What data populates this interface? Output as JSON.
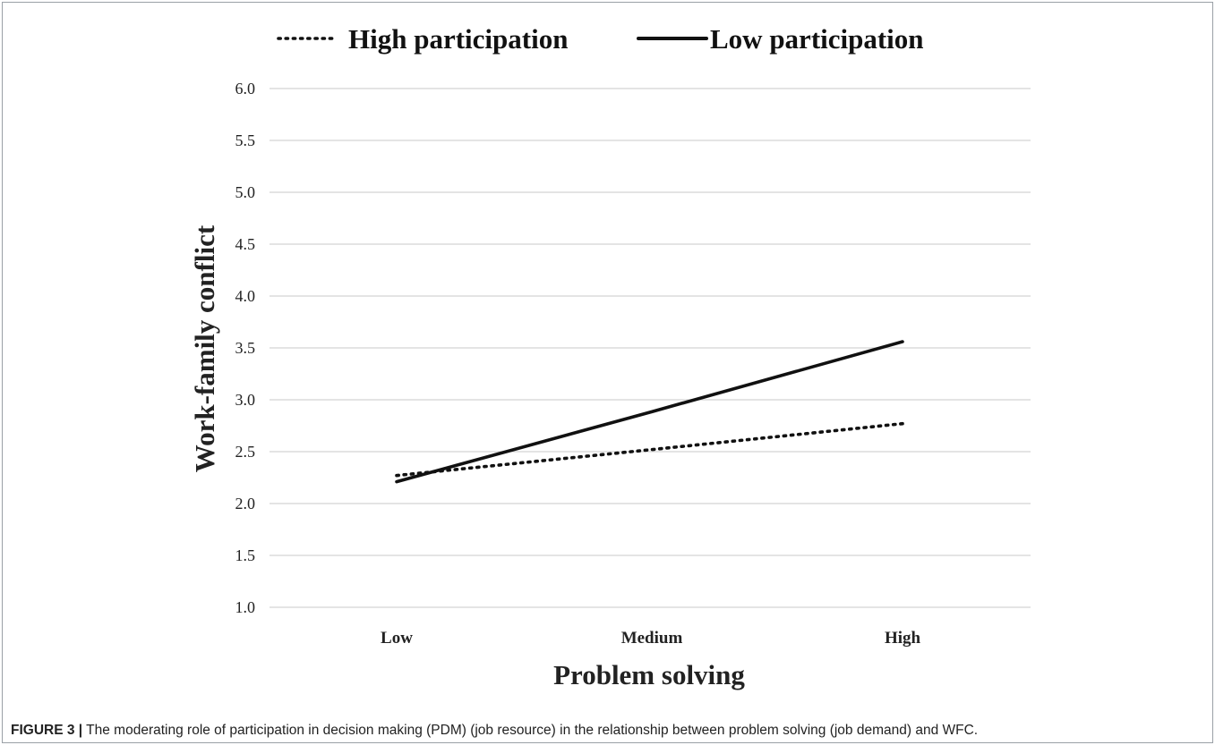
{
  "chart_data": {
    "type": "line",
    "categories": [
      "Low",
      "Medium",
      "High"
    ],
    "series": [
      {
        "name": "High participation",
        "values": [
          2.27,
          2.52,
          2.77
        ],
        "style": "dotted",
        "color": "#111111"
      },
      {
        "name": "Low participation",
        "values": [
          2.21,
          2.885,
          3.56
        ],
        "style": "solid",
        "color": "#111111"
      }
    ],
    "xlabel": "Problem solving",
    "ylabel": "Work-family conflict",
    "ylim": [
      1.0,
      6.0
    ],
    "yticks": [
      "1.0",
      "1.5",
      "2.0",
      "2.5",
      "3.0",
      "3.5",
      "4.0",
      "4.5",
      "5.0",
      "5.5",
      "6.0"
    ],
    "grid": true,
    "legend_position": "top"
  },
  "caption": {
    "label": "FIGURE 3 |",
    "text": " The moderating role of participation in decision making (PDM) (job resource) in the relationship between problem solving (job demand) and WFC."
  }
}
